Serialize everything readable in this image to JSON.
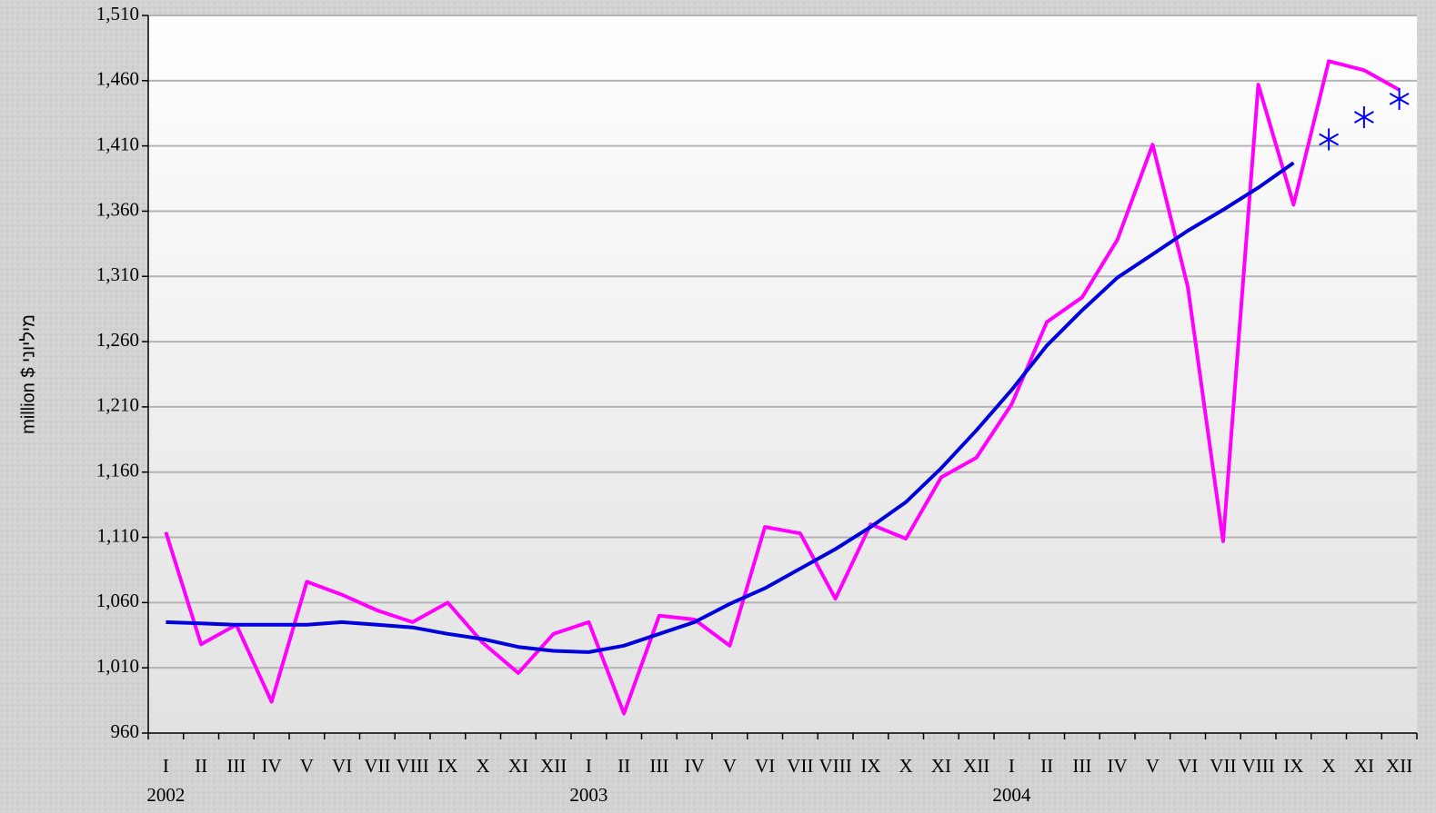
{
  "chart_data": {
    "type": "line",
    "y_label": "million $ מיליוני",
    "categories": [
      "I",
      "II",
      "III",
      "IV",
      "V",
      "VI",
      "VII",
      "VIII",
      "IX",
      "X",
      "XI",
      "XII",
      "I",
      "II",
      "III",
      "IV",
      "V",
      "VI",
      "VII",
      "VIII",
      "IX",
      "X",
      "XI",
      "XII",
      "I",
      "II",
      "III",
      "IV",
      "V",
      "VI",
      "VII",
      "VIII",
      "IX",
      "X",
      "XI",
      "XII"
    ],
    "year_labels": [
      "2002",
      "2003",
      "2004"
    ],
    "series": [
      {
        "color": "#ff00ff",
        "marker": "none",
        "values": [
          1114,
          1028,
          1043,
          984,
          1076,
          1066,
          1054,
          1045,
          1060,
          1029,
          1006,
          1036,
          1045,
          975,
          1050,
          1047,
          1027,
          1118,
          1113,
          1063,
          1120,
          1109,
          1156,
          1171,
          1212,
          1275,
          1294,
          1338,
          1411,
          1302,
          1107,
          1457,
          1365,
          1475,
          1468,
          1453
        ]
      },
      {
        "color": "#0000dd",
        "marker": "none",
        "values": [
          1045,
          1044,
          1043,
          1043,
          1043,
          1045,
          1043,
          1041,
          1036,
          1032,
          1026,
          1023,
          1022,
          1027,
          1036,
          1045,
          1059,
          1071,
          1086,
          1101,
          1118,
          1137,
          1163,
          1192,
          1223,
          1257,
          1284,
          1309,
          1327,
          1345,
          1361,
          1378,
          1397,
          null,
          null,
          null
        ]
      },
      {
        "color": "#0000ff",
        "marker": "asterisk",
        "values": [
          null,
          null,
          null,
          null,
          null,
          null,
          null,
          null,
          null,
          null,
          null,
          null,
          null,
          null,
          null,
          null,
          null,
          null,
          null,
          null,
          null,
          null,
          null,
          null,
          null,
          null,
          null,
          null,
          null,
          null,
          null,
          null,
          null,
          1415,
          1432,
          1446
        ]
      }
    ],
    "ylim": [
      960,
      1510
    ],
    "yticks": [
      960,
      {
        "value": 1010,
        "label": "1,010"
      },
      {
        "value": 1060,
        "label": "1,060"
      },
      {
        "value": 1110,
        "label": "1,110"
      },
      {
        "value": 1160,
        "label": "1,160"
      },
      {
        "value": 1210,
        "label": "1,210"
      },
      {
        "value": 1260,
        "label": "1,260"
      },
      {
        "value": 1310,
        "label": "1,310"
      },
      {
        "value": 1360,
        "label": "1,360"
      },
      {
        "value": 1410,
        "label": "1,410"
      },
      {
        "value": 1460,
        "label": "1,460"
      },
      {
        "value": 1510,
        "label": "1,510"
      }
    ],
    "grid": true
  }
}
